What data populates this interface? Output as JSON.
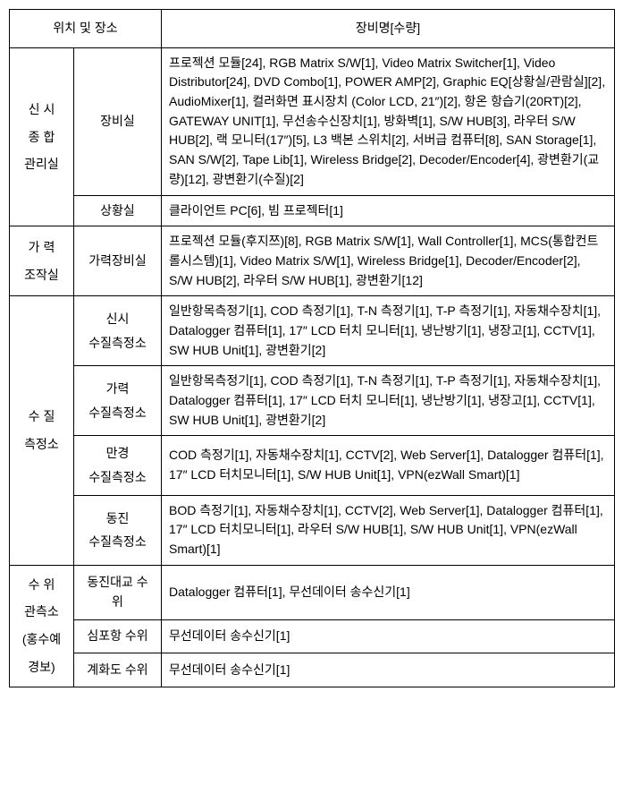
{
  "header": {
    "location": "위치 및 장소",
    "equipment": "장비명[수량]"
  },
  "sections": [
    {
      "loc1_lines": [
        "신 시",
        "종 합",
        "관리실"
      ],
      "rows": [
        {
          "loc2": "장비실",
          "equipment": "프로젝션 모듈[24], RGB Matrix S/W[1], Video Matrix Switcher[1], Video Distributor[24], DVD Combo[1], POWER AMP[2], Graphic EQ[상황실/관람실][2], AudioMixer[1], 컬러화면 표시장치 (Color LCD, 21″)[2], 항온 항습기(20RT)[2], GATEWAY UNIT[1], 무선송수신장치[1], 방화벽[1], S/W HUB[3], 라우터 S/W HUB[2], 랙 모니터(17″)[5], L3 백본 스위치[2], 서버급 컴퓨터[8], SAN Storage[1], SAN S/W[2], Tape Lib[1], Wireless Bridge[2], Decoder/Encoder[4], 광변환기(교량)[12], 광변환기(수질)[2]"
        },
        {
          "loc2": "상황실",
          "equipment": "클라이언트 PC[6], 빔 프로젝터[1]"
        }
      ]
    },
    {
      "loc1_lines": [
        "가 력",
        "조작실"
      ],
      "rows": [
        {
          "loc2": "가력장비실",
          "equipment": "프로젝션 모듈(후지쯔)[8], RGB Matrix S/W[1], Wall Controller[1], MCS(통합컨트롤시스템)[1], Video Matrix S/W[1], Wireless Bridge[1], Decoder/Encoder[2], S/W HUB[2], 라우터 S/W HUB[1], 광변환기[12]"
        }
      ]
    },
    {
      "loc1_lines": [
        "수 질",
        "측정소"
      ],
      "rows": [
        {
          "loc2_lines": [
            "신시",
            "수질측정소"
          ],
          "equipment": "일반항목측정기[1], COD 측정기[1], T-N 측정기[1], T-P 측정기[1], 자동채수장치[1], Datalogger 컴퓨터[1], 17″ LCD 터치 모니터[1], 냉난방기[1], 냉장고[1], CCTV[1], SW HUB Unit[1], 광변환기[2]"
        },
        {
          "loc2_lines": [
            "가력",
            "수질측정소"
          ],
          "equipment": "일반항목측정기[1], COD 측정기[1], T-N 측정기[1], T-P 측정기[1], 자동채수장치[1], Datalogger 컴퓨터[1], 17″ LCD 터치 모니터[1], 냉난방기[1], 냉장고[1], CCTV[1], SW HUB Unit[1], 광변환기[2]"
        },
        {
          "loc2_lines": [
            "만경",
            "수질측정소"
          ],
          "equipment": "COD 측정기[1], 자동채수장치[1], CCTV[2], Web Server[1], Datalogger 컴퓨터[1], 17″ LCD 터치모니터[1], S/W HUB Unit[1], VPN(ezWall Smart)[1]"
        },
        {
          "loc2_lines": [
            "동진",
            "수질측정소"
          ],
          "equipment": "BOD 측정기[1], 자동채수장치[1], CCTV[2], Web Server[1], Datalogger 컴퓨터[1], 17″ LCD 터치모니터[1], 라우터 S/W HUB[1], S/W HUB Unit[1], VPN(ezWall Smart)[1]"
        }
      ]
    },
    {
      "loc1_lines": [
        "수 위",
        "관측소",
        "(홍수예경보)"
      ],
      "rows": [
        {
          "loc2": "동진대교 수위",
          "equipment": "Datalogger 컴퓨터[1], 무선데이터 송수신기[1]"
        },
        {
          "loc2": "심포항 수위",
          "equipment": "무선데이터 송수신기[1]"
        },
        {
          "loc2": "계화도 수위",
          "equipment": "무선데이터 송수신기[1]"
        }
      ]
    }
  ]
}
